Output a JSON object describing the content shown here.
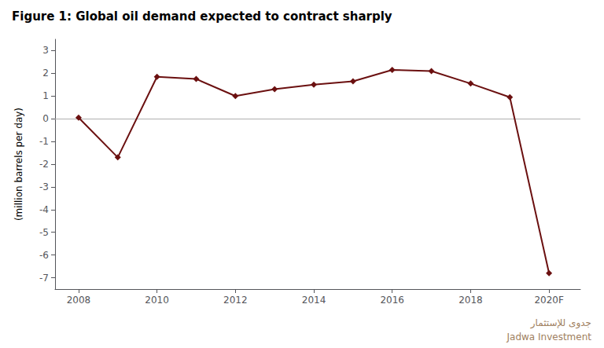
{
  "chart_data": {
    "type": "line",
    "title": "Figure 1: Global oil demand expected to contract sharply",
    "ylabel": "(million barrels per day)",
    "x": [
      2008,
      2009,
      2010,
      2011,
      2012,
      2013,
      2014,
      2015,
      2016,
      2017,
      2018,
      2019,
      2020
    ],
    "values": [
      0.05,
      -1.7,
      1.85,
      1.75,
      1.0,
      1.3,
      1.5,
      1.65,
      2.15,
      2.1,
      1.55,
      0.95,
      -6.8
    ],
    "color": "#6B1010",
    "marker": "diamond",
    "xlim": [
      2007.4,
      2020.8
    ],
    "xticks": [
      2008,
      2010,
      2012,
      2014,
      2016,
      2018,
      {
        "value": 2020,
        "label": "2020F"
      }
    ],
    "ylim": [
      -7.5,
      3.5
    ],
    "yticks": [
      -7,
      -6,
      -5,
      -4,
      -3,
      -2,
      -1,
      0,
      1,
      2,
      3
    ],
    "grid": false,
    "hlines": [
      {
        "value": 0,
        "color": "#b0b0b0"
      }
    ],
    "annotations": [
      {
        "text": "جدوى للإستثمار",
        "color": "#a08060"
      },
      {
        "text": "Jadwa Investment",
        "color": "#a08060"
      }
    ]
  }
}
